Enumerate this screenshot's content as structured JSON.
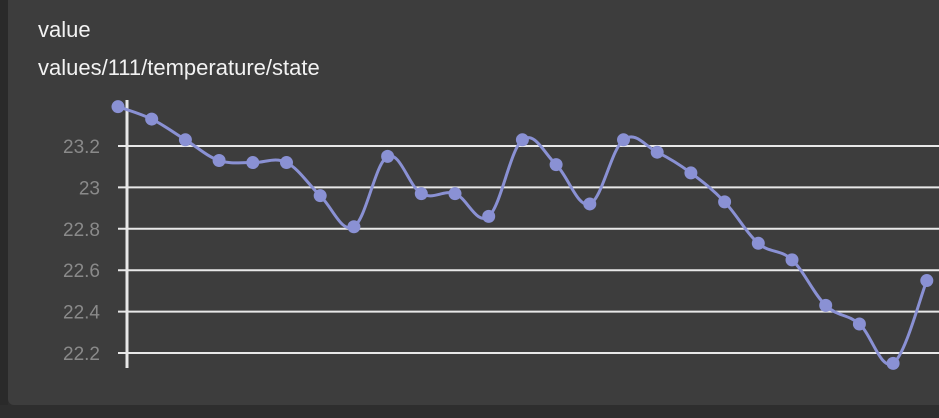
{
  "card": {
    "title": "value",
    "subtitle": "values/111/temperature/state"
  },
  "colors": {
    "background": "#3d3d3d",
    "line": "#8a91d4",
    "grid": "#e8e8e8",
    "tick_text": "#8a8a8a",
    "title_text": "#f2f2f2"
  },
  "chart_data": {
    "type": "line",
    "title": "",
    "xlabel": "",
    "ylabel": "",
    "yticks": [
      "23.2",
      "23",
      "22.8",
      "22.6",
      "22.4",
      "22.2"
    ],
    "ytick_values": [
      23.2,
      23.0,
      22.8,
      22.6,
      22.4,
      22.2
    ],
    "ylim": [
      22.14,
      23.4
    ],
    "grid": true,
    "series": [
      {
        "values": [
          23.39,
          23.33,
          23.23,
          23.13,
          23.12,
          23.12,
          22.96,
          22.81,
          23.15,
          22.97,
          22.97,
          22.86,
          23.23,
          23.11,
          22.92,
          23.23,
          23.17,
          23.07,
          22.93,
          22.73,
          22.65,
          22.43,
          22.34,
          22.15,
          22.55
        ]
      }
    ]
  }
}
